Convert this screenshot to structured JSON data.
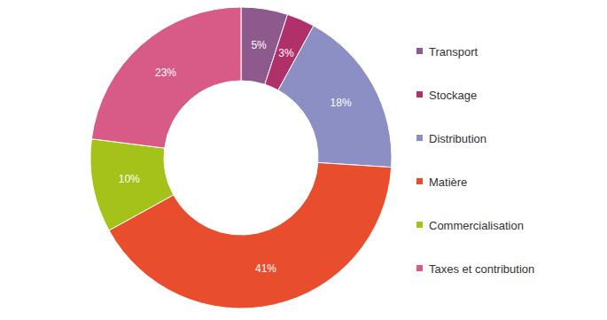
{
  "chart_data": {
    "type": "pie",
    "categories": [
      "Transport",
      "Stockage",
      "Distribution",
      "Matière",
      "Commercialisation",
      "Taxes et contribution"
    ],
    "values": [
      5,
      3,
      18,
      41,
      10,
      23
    ],
    "value_labels": [
      "5%",
      "3%",
      "18%",
      "41%",
      "10%",
      "23%"
    ],
    "colors": [
      "#8e5a8e",
      "#b0306a",
      "#8b8fc4",
      "#e84e2e",
      "#a4c21a",
      "#d85a86"
    ],
    "data_labels": true,
    "legend": "right"
  }
}
